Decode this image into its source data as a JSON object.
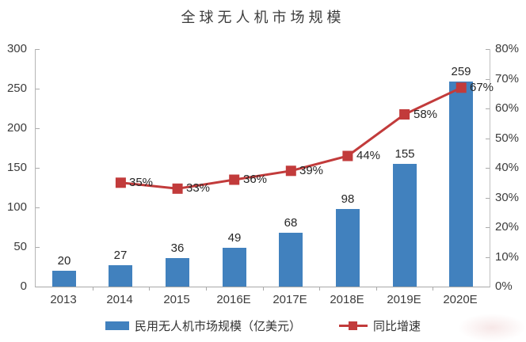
{
  "chart_data": {
    "type": "bar+line",
    "title": "全球无人机市场规模",
    "categories": [
      "2013",
      "2014",
      "2015",
      "2016E",
      "2017E",
      "2018E",
      "2019E",
      "2020E"
    ],
    "series": [
      {
        "name": "民用无人机市场规模（亿美元）",
        "type": "bar",
        "axis": "left",
        "color": "#4181BE",
        "values": [
          20,
          27,
          36,
          49,
          68,
          98,
          155,
          259
        ],
        "labels": [
          "20",
          "27",
          "36",
          "49",
          "68",
          "98",
          "155",
          "259"
        ]
      },
      {
        "name": "同比增速",
        "type": "line",
        "axis": "right",
        "color": "#C23B3B",
        "marker": "square",
        "values": [
          null,
          35,
          33,
          36,
          39,
          44,
          58,
          67
        ],
        "labels": [
          null,
          "35%",
          "33%",
          "36%",
          "39%",
          "44%",
          "58%",
          "67%"
        ]
      }
    ],
    "axes": {
      "left": {
        "min": 0,
        "max": 300,
        "step": 50,
        "ticks": [
          "0",
          "50",
          "100",
          "150",
          "200",
          "250",
          "300"
        ]
      },
      "right": {
        "min": 0,
        "max": 80,
        "step": 10,
        "ticks": [
          "0%",
          "10%",
          "20%",
          "30%",
          "40%",
          "50%",
          "60%",
          "70%",
          "80%"
        ]
      }
    },
    "legend_position": "bottom",
    "grid": false
  },
  "colors": {
    "bar": "#4181BE",
    "line": "#C23B3B",
    "axis": "#b5b5b5",
    "text": "#3c3c3c",
    "background": "#ffffff"
  }
}
